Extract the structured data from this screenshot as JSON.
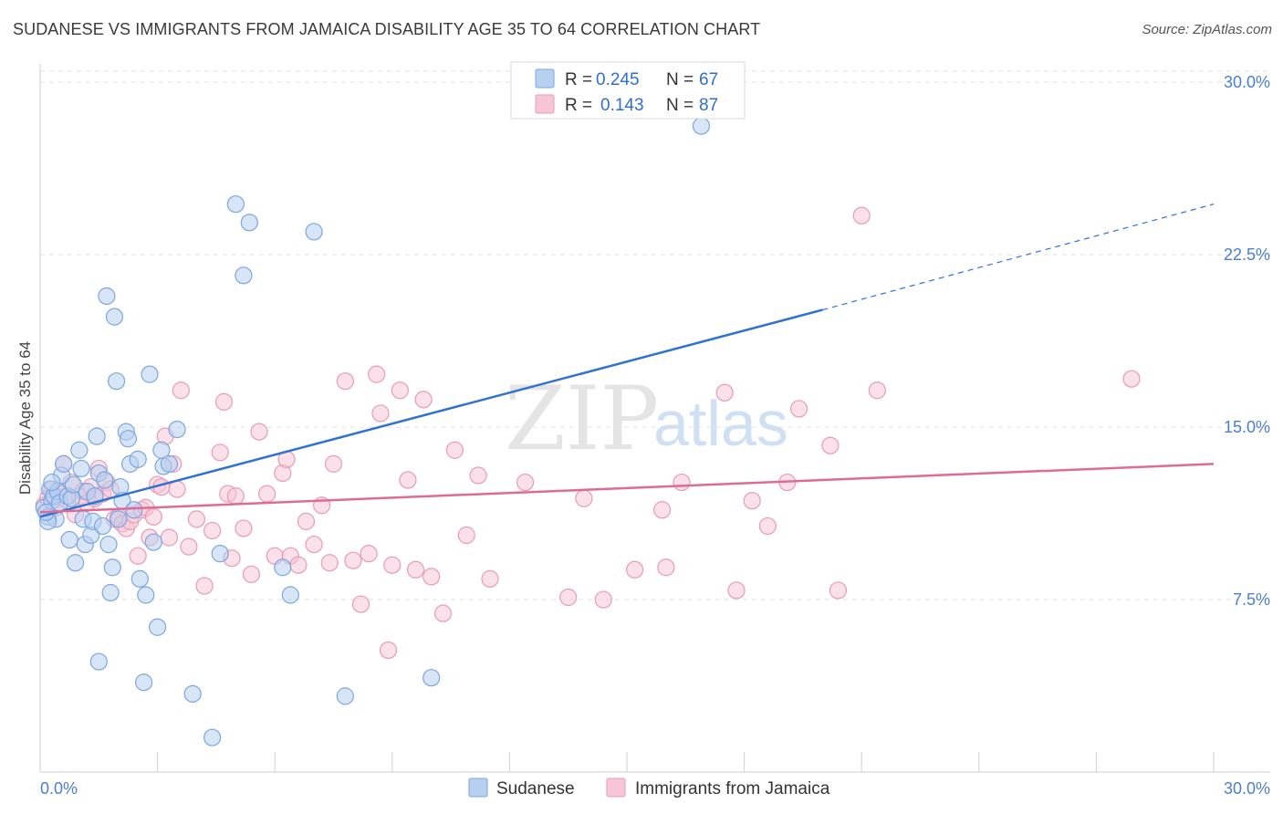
{
  "title": "SUDANESE VS IMMIGRANTS FROM JAMAICA DISABILITY AGE 35 TO 64 CORRELATION CHART",
  "source": "Source: ZipAtlas.com",
  "watermark": {
    "zip": "ZIP",
    "atlas": "atlas"
  },
  "colors": {
    "sudanese_fill": "#b8d0f0",
    "sudanese_stroke": "#7aa6e0",
    "sudanese_line": "#2f72d0",
    "jamaica_fill": "#f6c6d6",
    "jamaica_stroke": "#e99ab6",
    "jamaica_line": "#e06a96",
    "grid": "#e2e2e2",
    "tick_label": "#4a7fd0"
  },
  "legend": {
    "r_label": "R =",
    "n_label": "N =",
    "sudanese": {
      "r": "0.245",
      "n": "67"
    },
    "jamaica": {
      "r": "0.143",
      "n": "87"
    }
  },
  "chart_data": {
    "type": "scatter",
    "title": "SUDANESE VS IMMIGRANTS FROM JAMAICA DISABILITY AGE 35 TO 64 CORRELATION CHART",
    "xlabel": "",
    "ylabel": "Disability Age 35 to 64",
    "xlim": [
      0,
      30
    ],
    "ylim": [
      0,
      30.8
    ],
    "x_tick_labels": [
      "0.0%",
      "30.0%"
    ],
    "y_tick_labels": [
      "7.5%",
      "15.0%",
      "22.5%",
      "30.0%"
    ],
    "y_ticks": [
      7.5,
      15.0,
      22.5,
      30.0
    ],
    "grid": true,
    "legend_position": "top-center",
    "series": [
      {
        "name": "Sudanese",
        "trend": {
          "x": [
            0.0,
            20.0
          ],
          "y": [
            11.1,
            20.1
          ],
          "dashed_to": [
            30.0,
            24.7
          ]
        },
        "points": [
          [
            0.1,
            11.5
          ],
          [
            0.2,
            11.1
          ],
          [
            0.25,
            12.3
          ],
          [
            0.3,
            11.8
          ],
          [
            0.35,
            12.0
          ],
          [
            0.4,
            11.0
          ],
          [
            0.45,
            12.2
          ],
          [
            0.5,
            11.7
          ],
          [
            0.55,
            12.9
          ],
          [
            0.6,
            13.4
          ],
          [
            0.7,
            12.0
          ],
          [
            0.75,
            10.1
          ],
          [
            0.8,
            11.9
          ],
          [
            0.85,
            12.5
          ],
          [
            0.9,
            9.1
          ],
          [
            1.0,
            14.0
          ],
          [
            1.05,
            13.2
          ],
          [
            1.1,
            11.0
          ],
          [
            1.15,
            9.9
          ],
          [
            1.2,
            12.2
          ],
          [
            1.3,
            10.3
          ],
          [
            1.35,
            10.9
          ],
          [
            1.4,
            12.0
          ],
          [
            1.45,
            14.6
          ],
          [
            1.5,
            13.0
          ],
          [
            1.6,
            10.7
          ],
          [
            1.65,
            12.7
          ],
          [
            1.7,
            20.7
          ],
          [
            1.75,
            9.9
          ],
          [
            1.8,
            7.8
          ],
          [
            1.85,
            8.9
          ],
          [
            1.9,
            19.8
          ],
          [
            1.95,
            17.0
          ],
          [
            2.0,
            11.0
          ],
          [
            2.05,
            12.4
          ],
          [
            2.1,
            11.8
          ],
          [
            2.2,
            14.8
          ],
          [
            2.25,
            14.5
          ],
          [
            2.3,
            13.4
          ],
          [
            2.4,
            11.4
          ],
          [
            2.5,
            13.6
          ],
          [
            2.55,
            8.4
          ],
          [
            2.65,
            3.9
          ],
          [
            2.7,
            7.7
          ],
          [
            2.8,
            17.3
          ],
          [
            2.9,
            10.0
          ],
          [
            3.0,
            6.3
          ],
          [
            3.1,
            14.0
          ],
          [
            3.15,
            13.3
          ],
          [
            3.3,
            13.4
          ],
          [
            3.5,
            14.9
          ],
          [
            3.9,
            3.4
          ],
          [
            4.4,
            1.5
          ],
          [
            4.6,
            9.5
          ],
          [
            5.0,
            24.7
          ],
          [
            5.2,
            21.6
          ],
          [
            5.35,
            23.9
          ],
          [
            6.2,
            8.9
          ],
          [
            6.4,
            7.7
          ],
          [
            7.0,
            23.5
          ],
          [
            7.8,
            3.3
          ],
          [
            10.0,
            4.1
          ],
          [
            1.5,
            4.8
          ],
          [
            16.9,
            28.1
          ],
          [
            0.2,
            10.9
          ],
          [
            0.3,
            12.6
          ],
          [
            0.15,
            11.3
          ]
        ]
      },
      {
        "name": "Immigrants from Jamaica",
        "trend": {
          "x": [
            0.0,
            30.0
          ],
          "y": [
            11.3,
            13.4
          ]
        },
        "points": [
          [
            0.1,
            11.6
          ],
          [
            0.2,
            11.9
          ],
          [
            0.3,
            12.3
          ],
          [
            0.4,
            11.5
          ],
          [
            0.5,
            12.1
          ],
          [
            0.6,
            13.4
          ],
          [
            0.7,
            11.8
          ],
          [
            0.8,
            12.6
          ],
          [
            0.9,
            11.2
          ],
          [
            1.0,
            12.0
          ],
          [
            1.1,
            12.2
          ],
          [
            1.2,
            11.7
          ],
          [
            1.3,
            12.4
          ],
          [
            1.4,
            11.9
          ],
          [
            1.5,
            13.2
          ],
          [
            1.6,
            12.1
          ],
          [
            1.7,
            12.6
          ],
          [
            1.8,
            12.3
          ],
          [
            1.9,
            11.0
          ],
          [
            2.0,
            11.1
          ],
          [
            2.1,
            10.8
          ],
          [
            2.2,
            10.6
          ],
          [
            2.3,
            10.9
          ],
          [
            2.4,
            11.2
          ],
          [
            2.5,
            9.4
          ],
          [
            2.6,
            11.4
          ],
          [
            2.7,
            11.5
          ],
          [
            2.8,
            10.2
          ],
          [
            2.9,
            11.1
          ],
          [
            3.0,
            12.5
          ],
          [
            3.1,
            12.4
          ],
          [
            3.2,
            14.6
          ],
          [
            3.3,
            10.2
          ],
          [
            3.4,
            13.4
          ],
          [
            3.5,
            12.3
          ],
          [
            3.6,
            16.6
          ],
          [
            3.8,
            9.8
          ],
          [
            4.0,
            11.0
          ],
          [
            4.2,
            8.1
          ],
          [
            4.4,
            10.5
          ],
          [
            4.6,
            13.9
          ],
          [
            4.7,
            16.1
          ],
          [
            4.8,
            12.1
          ],
          [
            4.9,
            9.3
          ],
          [
            5.0,
            12.0
          ],
          [
            5.2,
            10.6
          ],
          [
            5.4,
            8.6
          ],
          [
            5.6,
            14.8
          ],
          [
            5.8,
            12.1
          ],
          [
            6.0,
            9.4
          ],
          [
            6.2,
            13.0
          ],
          [
            6.3,
            13.6
          ],
          [
            6.4,
            9.4
          ],
          [
            6.6,
            9.0
          ],
          [
            6.8,
            10.9
          ],
          [
            7.0,
            9.9
          ],
          [
            7.2,
            11.6
          ],
          [
            7.4,
            9.1
          ],
          [
            7.5,
            13.4
          ],
          [
            7.8,
            17.0
          ],
          [
            8.0,
            9.2
          ],
          [
            8.2,
            7.3
          ],
          [
            8.4,
            9.5
          ],
          [
            8.6,
            17.3
          ],
          [
            8.7,
            15.6
          ],
          [
            8.9,
            5.3
          ],
          [
            9.0,
            9.0
          ],
          [
            9.2,
            16.6
          ],
          [
            9.4,
            12.7
          ],
          [
            9.6,
            8.8
          ],
          [
            9.8,
            16.2
          ],
          [
            10.0,
            8.5
          ],
          [
            10.3,
            6.9
          ],
          [
            10.6,
            14.0
          ],
          [
            10.9,
            10.3
          ],
          [
            11.2,
            12.9
          ],
          [
            11.5,
            8.4
          ],
          [
            12.4,
            12.6
          ],
          [
            13.5,
            7.6
          ],
          [
            13.9,
            11.9
          ],
          [
            14.4,
            7.5
          ],
          [
            15.2,
            8.8
          ],
          [
            15.9,
            11.4
          ],
          [
            17.5,
            16.5
          ],
          [
            19.1,
            12.6
          ],
          [
            20.4,
            7.9
          ],
          [
            21.4,
            16.6
          ]
        ],
        "extra_points": [
          [
            19.4,
            15.8
          ],
          [
            20.2,
            14.2
          ],
          [
            21.0,
            24.2
          ],
          [
            27.9,
            17.1
          ],
          [
            16.4,
            12.6
          ],
          [
            17.8,
            7.9
          ],
          [
            18.2,
            11.8
          ],
          [
            18.6,
            10.7
          ],
          [
            16.0,
            8.9
          ]
        ]
      }
    ]
  },
  "bottom_legend": {
    "sudanese": "Sudanese",
    "jamaica": "Immigrants from Jamaica"
  }
}
